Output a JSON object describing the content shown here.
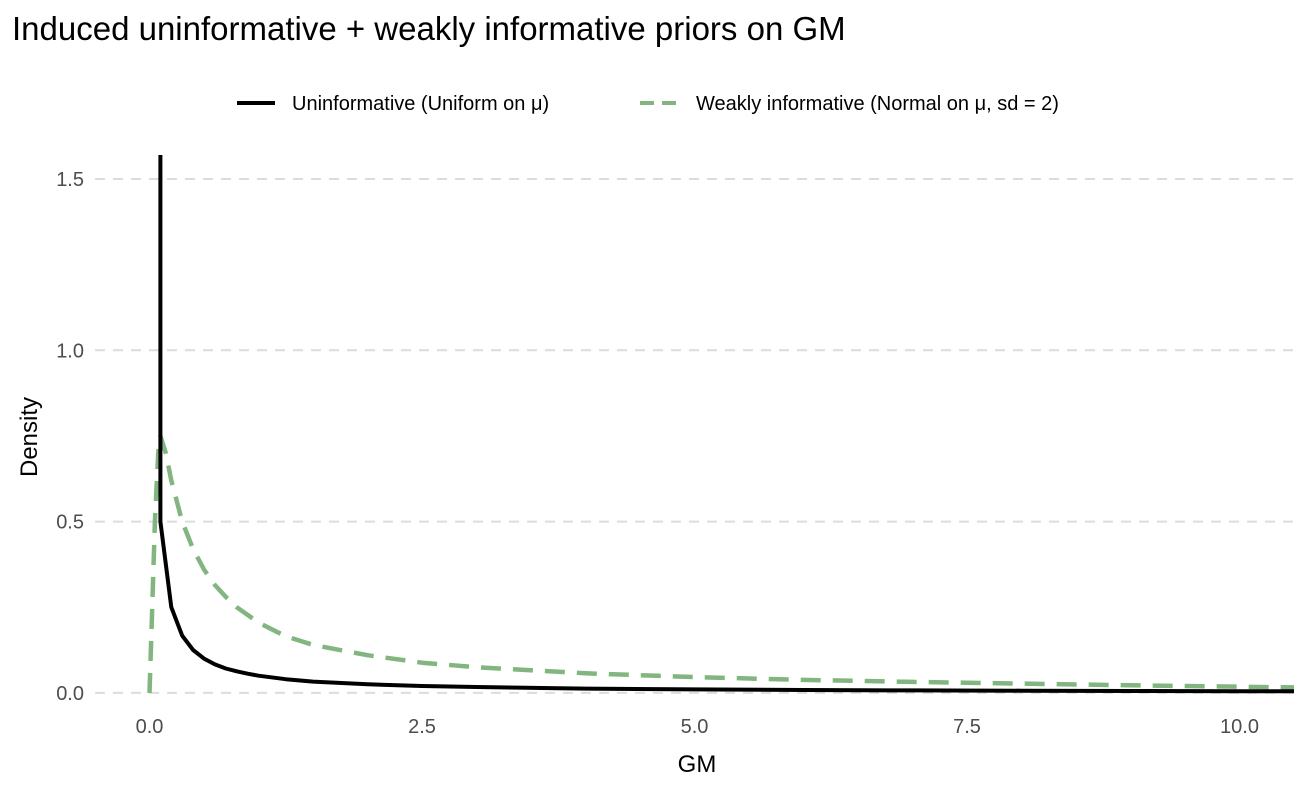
{
  "chart_data": {
    "type": "line",
    "title": "Induced uninformative + weakly informative priors on GM",
    "xlabel": "GM",
    "ylabel": "Density",
    "xlim": [
      -0.5,
      10.5
    ],
    "ylim": [
      -0.05,
      1.57
    ],
    "x_ticks": [
      0,
      2.5,
      5,
      7.5,
      10
    ],
    "x_tick_labels": [
      "0.0",
      "2.5",
      "5.0",
      "7.5",
      "10.0"
    ],
    "y_ticks": [
      0,
      0.5,
      1,
      1.5
    ],
    "y_tick_labels": [
      "0.0",
      "0.5",
      "1.0",
      "1.5"
    ],
    "grid": "horizontal dashed",
    "legend_position": "top",
    "series": [
      {
        "name": "Uninformative (Uniform on μ)",
        "color": "#000000",
        "dash": "solid",
        "x": [
          0.1,
          0.1,
          0.1,
          0.2,
          0.3,
          0.4,
          0.5,
          0.6,
          0.7,
          0.8,
          0.9,
          1.0,
          1.25,
          1.5,
          2.0,
          2.5,
          3.0,
          4.0,
          5.0,
          6.0,
          7.0,
          8.0,
          9.0,
          10.0,
          10.5
        ],
        "values": [
          1.57,
          1.0,
          0.5,
          0.25,
          0.167,
          0.125,
          0.1,
          0.083,
          0.071,
          0.063,
          0.056,
          0.05,
          0.04,
          0.033,
          0.025,
          0.02,
          0.017,
          0.0125,
          0.01,
          0.0083,
          0.0071,
          0.0063,
          0.0056,
          0.005,
          0.0048
        ]
      },
      {
        "name": "Weakly informative (Normal on μ, sd = 2)",
        "color": "#82b57f",
        "dash": "dashed",
        "x": [
          0.0,
          0.02,
          0.05,
          0.08,
          0.1,
          0.15,
          0.2,
          0.3,
          0.4,
          0.5,
          0.6,
          0.7,
          0.8,
          1.0,
          1.25,
          1.5,
          2.0,
          2.5,
          3.0,
          4.0,
          5.0,
          6.0,
          7.0,
          8.0,
          9.0,
          10.0,
          10.5
        ],
        "values": [
          0.0,
          0.2,
          0.5,
          0.7,
          0.75,
          0.7,
          0.62,
          0.5,
          0.42,
          0.36,
          0.315,
          0.28,
          0.25,
          0.205,
          0.165,
          0.14,
          0.11,
          0.088,
          0.075,
          0.057,
          0.046,
          0.038,
          0.032,
          0.027,
          0.022,
          0.018,
          0.016
        ]
      }
    ]
  }
}
